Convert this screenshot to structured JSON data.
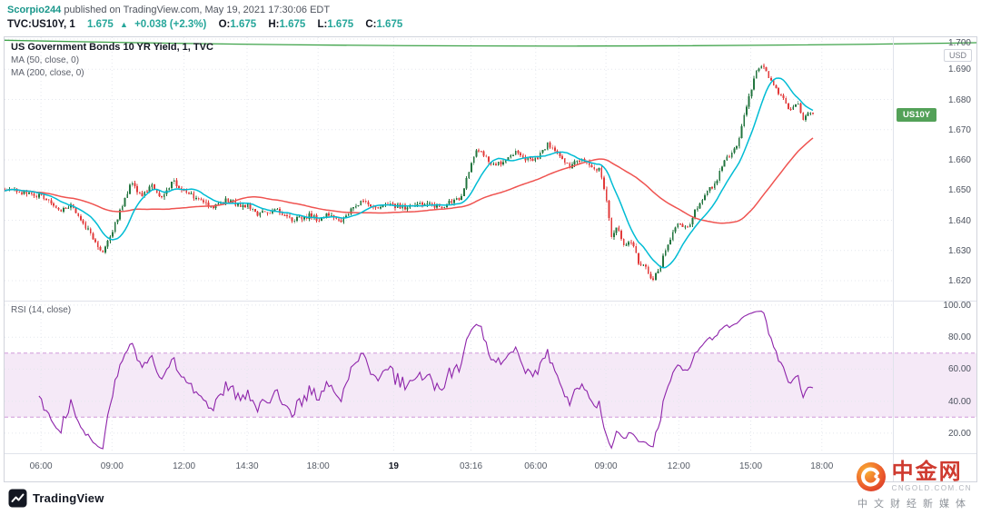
{
  "header": {
    "username": "Scorpio244",
    "published": "published on TradingView.com, May 19, 2021 17:30:06 EDT",
    "symbol": "TVC:US10Y, 1",
    "last": "1.675",
    "arrow": "▲",
    "change": "+0.038 (+2.3%)",
    "o_label": "O:",
    "o": "1.675",
    "h_label": "H:",
    "h": "1.675",
    "l_label": "L:",
    "l": "1.675",
    "c_label": "C:",
    "c": "1.675"
  },
  "legend": {
    "title": "US Government Bonds 10 YR Yield, 1, TVC",
    "ma_fast": "MA (50, close, 0)",
    "ma_slow": "MA (200, close, 0)",
    "rsi": "RSI (14, close)"
  },
  "scale": {
    "unit": "USD",
    "symbol_badge": "US10Y"
  },
  "footer": {
    "brand": "TradingView"
  },
  "watermark": {
    "title": "中金网",
    "domain": "CNGOLD.COM.CN",
    "tagline": "中文财经新媒体"
  },
  "chart_data": {
    "type": "candlestick",
    "title": "US Government Bonds 10 YR Yield, 1 minute, TVC",
    "unit": "USD",
    "ohlc_quote": {
      "open": 1.675,
      "high": 1.675,
      "low": 1.675,
      "close": 1.675,
      "change": 0.038,
      "change_pct": 2.3
    },
    "seed": 20210519,
    "n_candles": 330,
    "data_end_frac": 0.91,
    "noise": 0.0016,
    "wick": 0.0009,
    "price_ticks": [
      1.7,
      1.69,
      1.68,
      1.67,
      1.66,
      1.65,
      1.64,
      1.63,
      1.62
    ],
    "price_axis_top": 1.7006,
    "price_axis_scale": 3325,
    "badge_price": 1.6745,
    "green_line": [
      1.6996,
      1.6962,
      1.6988
    ],
    "ma_fast_window": 12,
    "ma_slow_window": 55,
    "rsi_period": 14,
    "rsi_band": [
      30,
      70
    ],
    "rsi_ticks": [
      100,
      80,
      60,
      40,
      20
    ],
    "rsi_axis_top": 102.8,
    "rsi_axis_scale": 1.7625,
    "time_labels": [
      {
        "label": "06:00",
        "f": 0.041
      },
      {
        "label": "09:00",
        "f": 0.121
      },
      {
        "label": "12:00",
        "f": 0.202
      },
      {
        "label": "14:30",
        "f": 0.273
      },
      {
        "label": "18:00",
        "f": 0.353
      },
      {
        "label": "19",
        "f": 0.438,
        "strong": true
      },
      {
        "label": "03:16",
        "f": 0.525
      },
      {
        "label": "06:00",
        "f": 0.598
      },
      {
        "label": "09:00",
        "f": 0.677
      },
      {
        "label": "12:00",
        "f": 0.759
      },
      {
        "label": "15:00",
        "f": 0.84
      },
      {
        "label": "18:00",
        "f": 0.92
      }
    ],
    "close_anchors": [
      [
        0.005,
        1.6505
      ],
      [
        0.02,
        1.649
      ],
      [
        0.041,
        1.648
      ],
      [
        0.061,
        1.643
      ],
      [
        0.074,
        1.645
      ],
      [
        0.087,
        1.64
      ],
      [
        0.102,
        1.633
      ],
      [
        0.11,
        1.6285
      ],
      [
        0.121,
        1.636
      ],
      [
        0.133,
        1.645
      ],
      [
        0.143,
        1.653
      ],
      [
        0.153,
        1.648
      ],
      [
        0.166,
        1.6515
      ],
      [
        0.176,
        1.647
      ],
      [
        0.189,
        1.653
      ],
      [
        0.202,
        1.65
      ],
      [
        0.218,
        1.6465
      ],
      [
        0.233,
        1.6445
      ],
      [
        0.25,
        1.647
      ],
      [
        0.264,
        1.645
      ],
      [
        0.273,
        1.645
      ],
      [
        0.286,
        1.642
      ],
      [
        0.307,
        1.6435
      ],
      [
        0.325,
        1.64
      ],
      [
        0.343,
        1.6415
      ],
      [
        0.353,
        1.6405
      ],
      [
        0.368,
        1.642
      ],
      [
        0.38,
        1.64
      ],
      [
        0.394,
        1.6445
      ],
      [
        0.404,
        1.647
      ],
      [
        0.414,
        1.644
      ],
      [
        0.427,
        1.645
      ],
      [
        0.438,
        1.645
      ],
      [
        0.455,
        1.644
      ],
      [
        0.47,
        1.6455
      ],
      [
        0.489,
        1.6445
      ],
      [
        0.503,
        1.646
      ],
      [
        0.513,
        1.647
      ],
      [
        0.521,
        1.655
      ],
      [
        0.532,
        1.664
      ],
      [
        0.542,
        1.661
      ],
      [
        0.552,
        1.658
      ],
      [
        0.564,
        1.66
      ],
      [
        0.575,
        1.663
      ],
      [
        0.585,
        1.66
      ],
      [
        0.598,
        1.66
      ],
      [
        0.611,
        1.665
      ],
      [
        0.624,
        1.662
      ],
      [
        0.636,
        1.658
      ],
      [
        0.648,
        1.66
      ],
      [
        0.659,
        1.658
      ],
      [
        0.67,
        1.657
      ],
      [
        0.677,
        1.648
      ],
      [
        0.683,
        1.635
      ],
      [
        0.69,
        1.638
      ],
      [
        0.697,
        1.631
      ],
      [
        0.706,
        1.633
      ],
      [
        0.714,
        1.626
      ],
      [
        0.722,
        1.624
      ],
      [
        0.728,
        1.62
      ],
      [
        0.736,
        1.623
      ],
      [
        0.744,
        1.63
      ],
      [
        0.752,
        1.636
      ],
      [
        0.759,
        1.639
      ],
      [
        0.769,
        1.637
      ],
      [
        0.779,
        1.644
      ],
      [
        0.79,
        1.65
      ],
      [
        0.8,
        1.652
      ],
      [
        0.81,
        1.66
      ],
      [
        0.818,
        1.662
      ],
      [
        0.826,
        1.665
      ],
      [
        0.833,
        1.675
      ],
      [
        0.84,
        1.683
      ],
      [
        0.847,
        1.69
      ],
      [
        0.854,
        1.692
      ],
      [
        0.861,
        1.687
      ],
      [
        0.869,
        1.683
      ],
      [
        0.877,
        1.68
      ],
      [
        0.884,
        1.676
      ],
      [
        0.892,
        1.679
      ],
      [
        0.9,
        1.673
      ],
      [
        0.906,
        1.676
      ],
      [
        0.91,
        1.675
      ]
    ],
    "colors": {
      "up": "#23753f",
      "down": "#e23a3a",
      "ma_fast": "#00bcd4",
      "ma_slow": "#ef5350",
      "green_line": "#3fa34a",
      "rsi": "#8e24aa",
      "rsi_band_fill": "rgba(155,39,176,0.10)",
      "rsi_band_edge": "rgba(155,39,176,0.45)",
      "grid": "#e4e7ed",
      "badge_bg": "#53a158"
    }
  }
}
